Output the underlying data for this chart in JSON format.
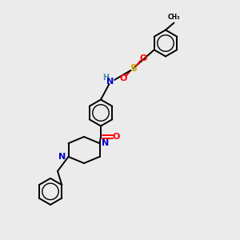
{
  "bg_color": "#ebebeb",
  "atom_colors": {
    "C": "#000000",
    "N": "#0000cc",
    "O": "#ff0000",
    "S": "#ccaa00",
    "H": "#5588aa"
  },
  "bond_color": "#000000",
  "figsize": [
    3.0,
    3.0
  ],
  "dpi": 100,
  "bond_lw": 1.4,
  "ring_r": 0.55
}
